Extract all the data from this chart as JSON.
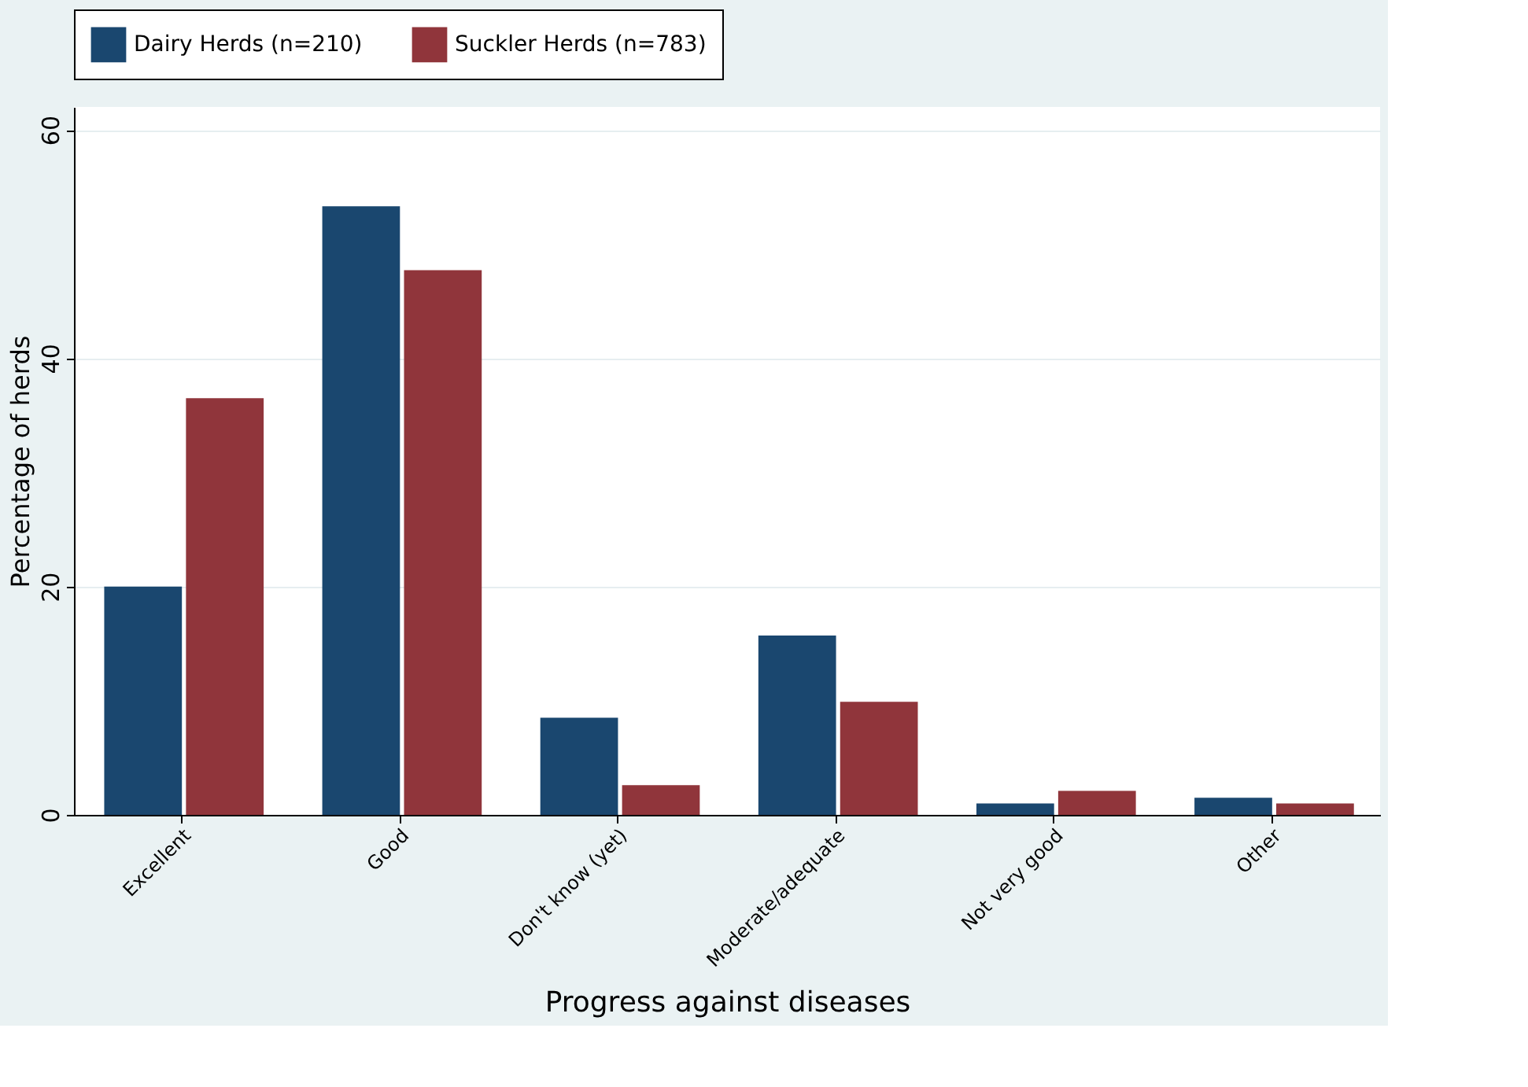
{
  "chart_data": {
    "type": "bar",
    "xlabel": "Progress against diseases",
    "ylabel": "Percentage of herds",
    "categories": [
      "Excellent",
      "Good",
      "Don't know (yet)",
      "Moderate/adequate",
      "Not very good",
      "Other"
    ],
    "series": [
      {
        "name": "Dairy Herds (n=210)",
        "color": "#1a476f",
        "values": [
          20.0,
          53.3,
          8.5,
          15.7,
          1.0,
          1.5
        ]
      },
      {
        "name": "Suckler Herds (n=783)",
        "color": "#90353b",
        "values": [
          36.5,
          47.7,
          2.6,
          9.9,
          2.1,
          1.0
        ]
      }
    ],
    "ylim": [
      0,
      62
    ],
    "yticks": [
      0,
      20,
      40,
      60
    ],
    "grid": "y",
    "legend": "top"
  }
}
